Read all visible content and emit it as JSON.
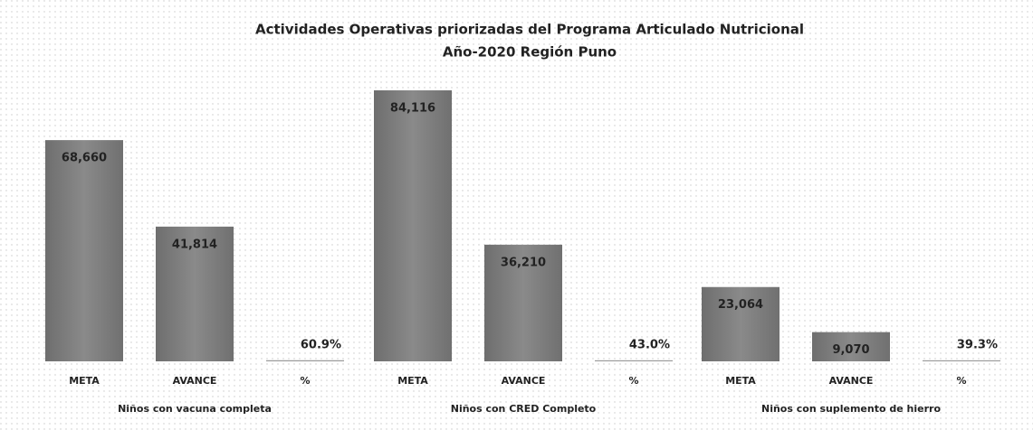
{
  "chart_data": {
    "type": "bar",
    "title": "Actividades Operativas priorizadas del Programa Articulado Nutricional",
    "subtitle": "Año-2020 Región Puno",
    "ylim": [
      0,
      90000
    ],
    "color": "#7b7b7b",
    "groups": [
      {
        "name": "Niños con vacuna completa",
        "categories": [
          "META",
          "AVANCE",
          "%"
        ],
        "values": [
          68660,
          41814,
          60.9
        ],
        "value_labels": [
          "68,660",
          "41,814",
          "60.9%"
        ]
      },
      {
        "name": "Niños con CRED Completo",
        "categories": [
          "META",
          "AVANCE",
          "%"
        ],
        "values": [
          84116,
          36210,
          43.0
        ],
        "value_labels": [
          "84,116",
          "36,210",
          "43.0%"
        ]
      },
      {
        "name": "Niños con suplemento de hierro",
        "categories": [
          "META",
          "AVANCE",
          "%"
        ],
        "values": [
          23064,
          9070,
          39.3
        ],
        "value_labels": [
          "23,064",
          "9,070",
          "39.3%"
        ]
      }
    ]
  }
}
